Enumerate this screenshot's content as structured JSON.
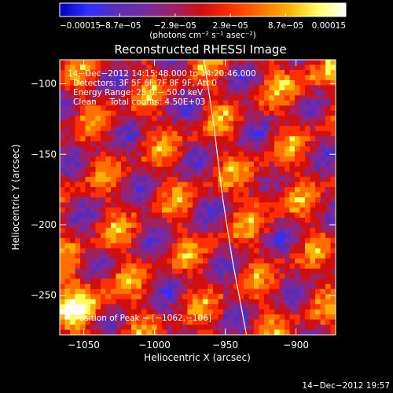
{
  "chart_data": {
    "type": "heatmap",
    "title": "Reconstructed RHESSI Image",
    "xlabel": "Heliocentric X (arcsec)",
    "ylabel": "Heliocentric Y (arcsec)",
    "xlim": [
      -1067,
      -872
    ],
    "ylim": [
      -278,
      -83
    ],
    "x_ticks": [
      {
        "value": -1050,
        "label": "−1050"
      },
      {
        "value": -1000,
        "label": "−1000"
      },
      {
        "value": -950,
        "label": "−950"
      },
      {
        "value": -900,
        "label": "−900"
      }
    ],
    "y_ticks": [
      {
        "value": -100,
        "label": "−100"
      },
      {
        "value": -150,
        "label": "−150"
      },
      {
        "value": -200,
        "label": "−200"
      },
      {
        "value": -250,
        "label": "−250"
      }
    ],
    "colorbar": {
      "range": [
        -0.00015,
        0.00015
      ],
      "tick_values": [
        -0.00015,
        -8.7e-05,
        -2.9e-05,
        2.9e-05,
        8.7e-05,
        0.00015
      ],
      "tick_labels": [
        "−0.00015",
        "−8.7e−05",
        "−2.9e−05",
        "2.9e−05",
        "8.7e−05",
        "0.00015"
      ],
      "unit_label": "(photons cm⁻² s⁻¹ asec⁻²)",
      "color_stops": [
        "#0000c0",
        "#3030ff",
        "#5a2db8",
        "#7a2aa0",
        "#a02060",
        "#d01010",
        "#ff3000",
        "#ff7000",
        "#ffb000",
        "#ffff60",
        "#ffffff"
      ]
    },
    "annotations": [
      "14−Dec−2012 14:15:48.000 to 14:20:46.000",
      "Detectors: 3F 5F 6F 7F 8F 9F, Att 0",
      "Energy Range: 25.0 − 50.0 keV",
      "Clean     Total counts: 4.50E+03"
    ],
    "peak_label": "Position of Peak = [−1062,−106]",
    "peak": [
      -1062,
      -106
    ],
    "limb": [
      [
        -965,
        -83
      ],
      [
        -958,
        -130
      ],
      [
        -952,
        -180
      ],
      [
        -945,
        -225
      ],
      [
        -935,
        -278
      ]
    ],
    "footer": "14−Dec−2012 19:57"
  }
}
